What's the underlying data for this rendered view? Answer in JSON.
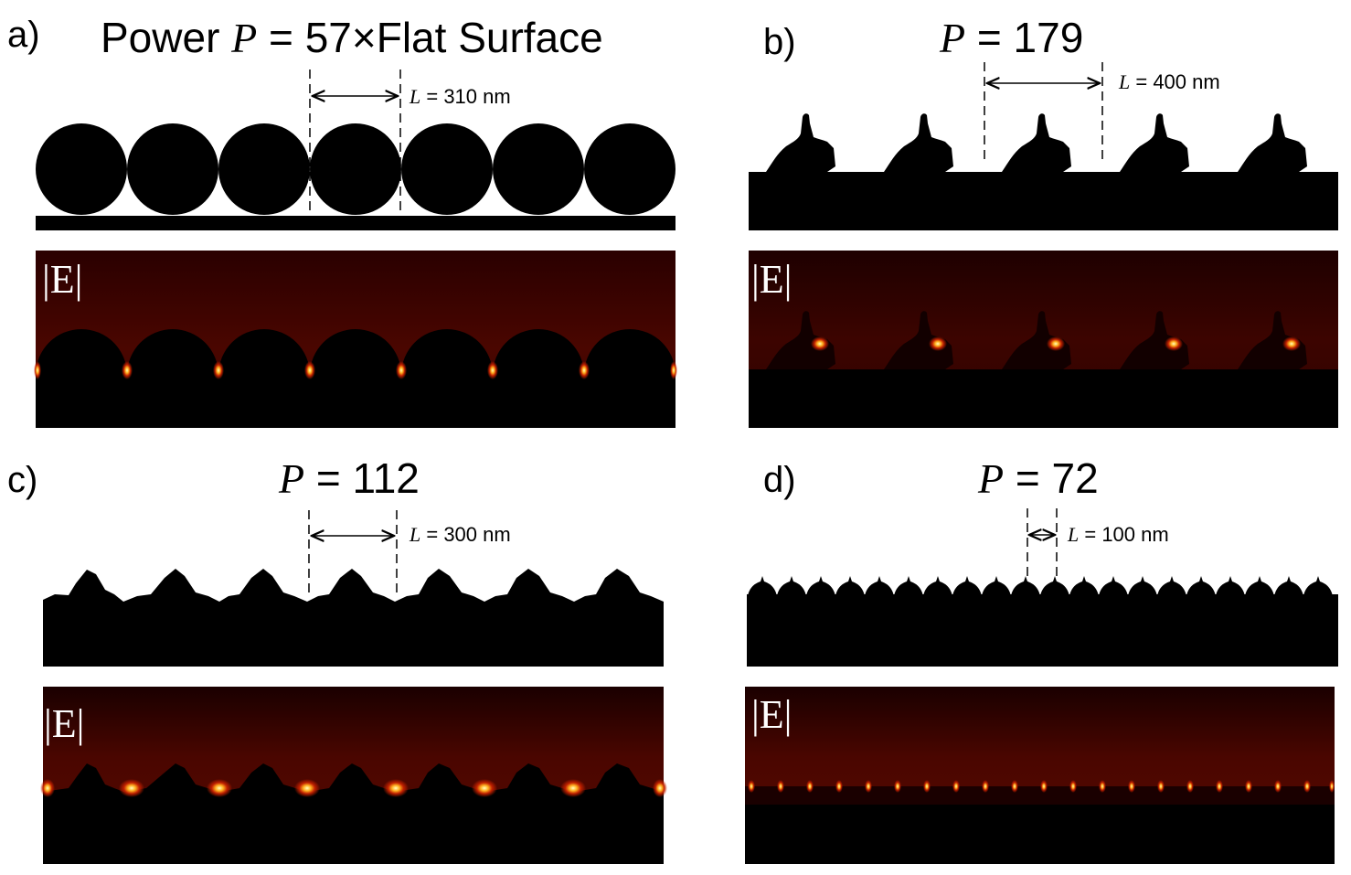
{
  "panels": [
    {
      "label": "a)",
      "title_prefix": "Power ",
      "title_var": "P",
      "title_rest": " = 57×Flat Surface",
      "L_var": "L",
      "L_text": " = 310 nm",
      "field_label": "|E|"
    },
    {
      "label": "b)",
      "title_prefix": "",
      "title_var": "P",
      "title_rest": " = 179",
      "L_var": "L",
      "L_text": " = 400 nm",
      "field_label": "|E|"
    },
    {
      "label": "c)",
      "title_prefix": "",
      "title_var": "P",
      "title_rest": " = 112",
      "L_var": "L",
      "L_text": " = 300 nm",
      "field_label": "|E|"
    },
    {
      "label": "d)",
      "title_prefix": "",
      "title_var": "P",
      "title_rest": " = 72",
      "L_var": "L",
      "L_text": " = 100 nm",
      "field_label": "|E|"
    }
  ],
  "colors": {
    "structure": "#000000",
    "field_dark": "#1a0000",
    "field_mid": "#5a0a00",
    "hotspot": "#ffff80"
  }
}
